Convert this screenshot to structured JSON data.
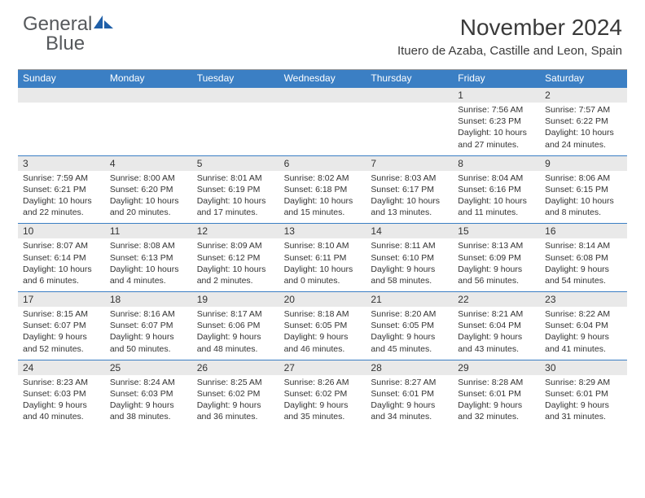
{
  "brand": {
    "part1": "General",
    "part2": "Blue"
  },
  "title": "November 2024",
  "location": "Ituero de Azaba, Castille and Leon, Spain",
  "colors": {
    "header_bg": "#3b7fc4",
    "daynum_bg": "#e9e9e9",
    "row_border": "#3b7fc4",
    "text": "#333333",
    "logo_gray": "#56595c",
    "logo_blue": "#3b7fc4"
  },
  "weekdays": [
    "Sunday",
    "Monday",
    "Tuesday",
    "Wednesday",
    "Thursday",
    "Friday",
    "Saturday"
  ],
  "weeks": [
    {
      "nums": [
        "",
        "",
        "",
        "",
        "",
        "1",
        "2"
      ],
      "cells": [
        {},
        {},
        {},
        {},
        {},
        {
          "sunrise": "Sunrise: 7:56 AM",
          "sunset": "Sunset: 6:23 PM",
          "day1": "Daylight: 10 hours",
          "day2": "and 27 minutes."
        },
        {
          "sunrise": "Sunrise: 7:57 AM",
          "sunset": "Sunset: 6:22 PM",
          "day1": "Daylight: 10 hours",
          "day2": "and 24 minutes."
        }
      ]
    },
    {
      "nums": [
        "3",
        "4",
        "5",
        "6",
        "7",
        "8",
        "9"
      ],
      "cells": [
        {
          "sunrise": "Sunrise: 7:59 AM",
          "sunset": "Sunset: 6:21 PM",
          "day1": "Daylight: 10 hours",
          "day2": "and 22 minutes."
        },
        {
          "sunrise": "Sunrise: 8:00 AM",
          "sunset": "Sunset: 6:20 PM",
          "day1": "Daylight: 10 hours",
          "day2": "and 20 minutes."
        },
        {
          "sunrise": "Sunrise: 8:01 AM",
          "sunset": "Sunset: 6:19 PM",
          "day1": "Daylight: 10 hours",
          "day2": "and 17 minutes."
        },
        {
          "sunrise": "Sunrise: 8:02 AM",
          "sunset": "Sunset: 6:18 PM",
          "day1": "Daylight: 10 hours",
          "day2": "and 15 minutes."
        },
        {
          "sunrise": "Sunrise: 8:03 AM",
          "sunset": "Sunset: 6:17 PM",
          "day1": "Daylight: 10 hours",
          "day2": "and 13 minutes."
        },
        {
          "sunrise": "Sunrise: 8:04 AM",
          "sunset": "Sunset: 6:16 PM",
          "day1": "Daylight: 10 hours",
          "day2": "and 11 minutes."
        },
        {
          "sunrise": "Sunrise: 8:06 AM",
          "sunset": "Sunset: 6:15 PM",
          "day1": "Daylight: 10 hours",
          "day2": "and 8 minutes."
        }
      ]
    },
    {
      "nums": [
        "10",
        "11",
        "12",
        "13",
        "14",
        "15",
        "16"
      ],
      "cells": [
        {
          "sunrise": "Sunrise: 8:07 AM",
          "sunset": "Sunset: 6:14 PM",
          "day1": "Daylight: 10 hours",
          "day2": "and 6 minutes."
        },
        {
          "sunrise": "Sunrise: 8:08 AM",
          "sunset": "Sunset: 6:13 PM",
          "day1": "Daylight: 10 hours",
          "day2": "and 4 minutes."
        },
        {
          "sunrise": "Sunrise: 8:09 AM",
          "sunset": "Sunset: 6:12 PM",
          "day1": "Daylight: 10 hours",
          "day2": "and 2 minutes."
        },
        {
          "sunrise": "Sunrise: 8:10 AM",
          "sunset": "Sunset: 6:11 PM",
          "day1": "Daylight: 10 hours",
          "day2": "and 0 minutes."
        },
        {
          "sunrise": "Sunrise: 8:11 AM",
          "sunset": "Sunset: 6:10 PM",
          "day1": "Daylight: 9 hours",
          "day2": "and 58 minutes."
        },
        {
          "sunrise": "Sunrise: 8:13 AM",
          "sunset": "Sunset: 6:09 PM",
          "day1": "Daylight: 9 hours",
          "day2": "and 56 minutes."
        },
        {
          "sunrise": "Sunrise: 8:14 AM",
          "sunset": "Sunset: 6:08 PM",
          "day1": "Daylight: 9 hours",
          "day2": "and 54 minutes."
        }
      ]
    },
    {
      "nums": [
        "17",
        "18",
        "19",
        "20",
        "21",
        "22",
        "23"
      ],
      "cells": [
        {
          "sunrise": "Sunrise: 8:15 AM",
          "sunset": "Sunset: 6:07 PM",
          "day1": "Daylight: 9 hours",
          "day2": "and 52 minutes."
        },
        {
          "sunrise": "Sunrise: 8:16 AM",
          "sunset": "Sunset: 6:07 PM",
          "day1": "Daylight: 9 hours",
          "day2": "and 50 minutes."
        },
        {
          "sunrise": "Sunrise: 8:17 AM",
          "sunset": "Sunset: 6:06 PM",
          "day1": "Daylight: 9 hours",
          "day2": "and 48 minutes."
        },
        {
          "sunrise": "Sunrise: 8:18 AM",
          "sunset": "Sunset: 6:05 PM",
          "day1": "Daylight: 9 hours",
          "day2": "and 46 minutes."
        },
        {
          "sunrise": "Sunrise: 8:20 AM",
          "sunset": "Sunset: 6:05 PM",
          "day1": "Daylight: 9 hours",
          "day2": "and 45 minutes."
        },
        {
          "sunrise": "Sunrise: 8:21 AM",
          "sunset": "Sunset: 6:04 PM",
          "day1": "Daylight: 9 hours",
          "day2": "and 43 minutes."
        },
        {
          "sunrise": "Sunrise: 8:22 AM",
          "sunset": "Sunset: 6:04 PM",
          "day1": "Daylight: 9 hours",
          "day2": "and 41 minutes."
        }
      ]
    },
    {
      "nums": [
        "24",
        "25",
        "26",
        "27",
        "28",
        "29",
        "30"
      ],
      "cells": [
        {
          "sunrise": "Sunrise: 8:23 AM",
          "sunset": "Sunset: 6:03 PM",
          "day1": "Daylight: 9 hours",
          "day2": "and 40 minutes."
        },
        {
          "sunrise": "Sunrise: 8:24 AM",
          "sunset": "Sunset: 6:03 PM",
          "day1": "Daylight: 9 hours",
          "day2": "and 38 minutes."
        },
        {
          "sunrise": "Sunrise: 8:25 AM",
          "sunset": "Sunset: 6:02 PM",
          "day1": "Daylight: 9 hours",
          "day2": "and 36 minutes."
        },
        {
          "sunrise": "Sunrise: 8:26 AM",
          "sunset": "Sunset: 6:02 PM",
          "day1": "Daylight: 9 hours",
          "day2": "and 35 minutes."
        },
        {
          "sunrise": "Sunrise: 8:27 AM",
          "sunset": "Sunset: 6:01 PM",
          "day1": "Daylight: 9 hours",
          "day2": "and 34 minutes."
        },
        {
          "sunrise": "Sunrise: 8:28 AM",
          "sunset": "Sunset: 6:01 PM",
          "day1": "Daylight: 9 hours",
          "day2": "and 32 minutes."
        },
        {
          "sunrise": "Sunrise: 8:29 AM",
          "sunset": "Sunset: 6:01 PM",
          "day1": "Daylight: 9 hours",
          "day2": "and 31 minutes."
        }
      ]
    }
  ]
}
